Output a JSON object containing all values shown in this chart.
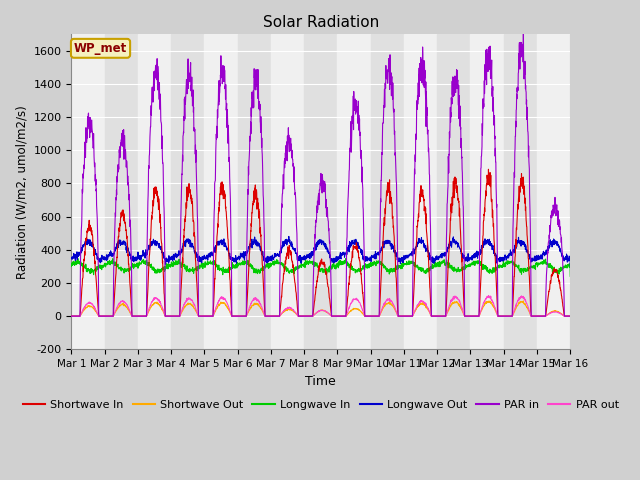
{
  "title": "Solar Radiation",
  "xlabel": "Time",
  "ylabel": "Radiation (W/m2, umol/m2/s)",
  "ylim": [
    -200,
    1700
  ],
  "yticks": [
    -200,
    0,
    200,
    400,
    600,
    800,
    1000,
    1200,
    1400,
    1600
  ],
  "n_days": 15,
  "label_text": "WP_met",
  "fig_bg": "#d0d0d0",
  "plot_bg_light": "#f0f0f0",
  "plot_bg_dark": "#e0e0e0",
  "series": {
    "shortwave_in": {
      "color": "#dd0000",
      "label": "Shortwave In"
    },
    "shortwave_out": {
      "color": "#ffaa00",
      "label": "Shortwave Out"
    },
    "longwave_in": {
      "color": "#00cc00",
      "label": "Longwave In"
    },
    "longwave_out": {
      "color": "#0000cc",
      "label": "Longwave Out"
    },
    "par_in": {
      "color": "#9900cc",
      "label": "PAR in"
    },
    "par_out": {
      "color": "#ff44cc",
      "label": "PAR out"
    }
  },
  "x_tick_labels": [
    "Mar 1",
    "Mar 2",
    "Mar 3",
    "Mar 4",
    "Mar 5",
    "Mar 6",
    "Mar 7",
    "Mar 8",
    "Mar 9",
    "Mar 10",
    "Mar 11",
    "Mar 12",
    "Mar 13",
    "Mar 14",
    "Mar 15",
    "Mar 16"
  ],
  "par_in_peaks": [
    1160,
    1050,
    1460,
    1460,
    1460,
    1430,
    1050,
    800,
    1270,
    1510,
    1500,
    1430,
    1560,
    1590,
    650
  ],
  "sw_in_peaks": [
    540,
    620,
    775,
    760,
    770,
    740,
    390,
    330,
    430,
    770,
    750,
    800,
    820,
    810,
    280
  ],
  "sw_out_peaks": [
    60,
    70,
    80,
    75,
    80,
    75,
    40,
    35,
    45,
    80,
    75,
    85,
    88,
    85,
    30
  ],
  "par_out_peaks": [
    80,
    90,
    110,
    105,
    110,
    105,
    50,
    35,
    105,
    100,
    90,
    115,
    115,
    115,
    25
  ],
  "lw_in_base": 310,
  "lw_out_base": 360
}
